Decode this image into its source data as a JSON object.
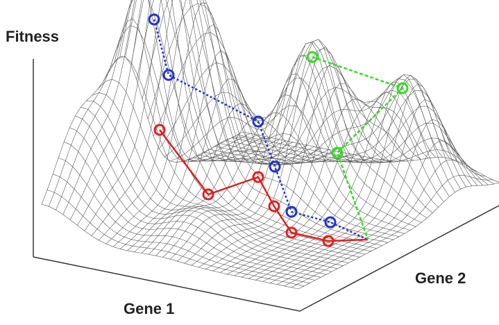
{
  "axes": {
    "vertical": "Fitness",
    "front": "Gene 1",
    "side": "Gene 2"
  }
}
